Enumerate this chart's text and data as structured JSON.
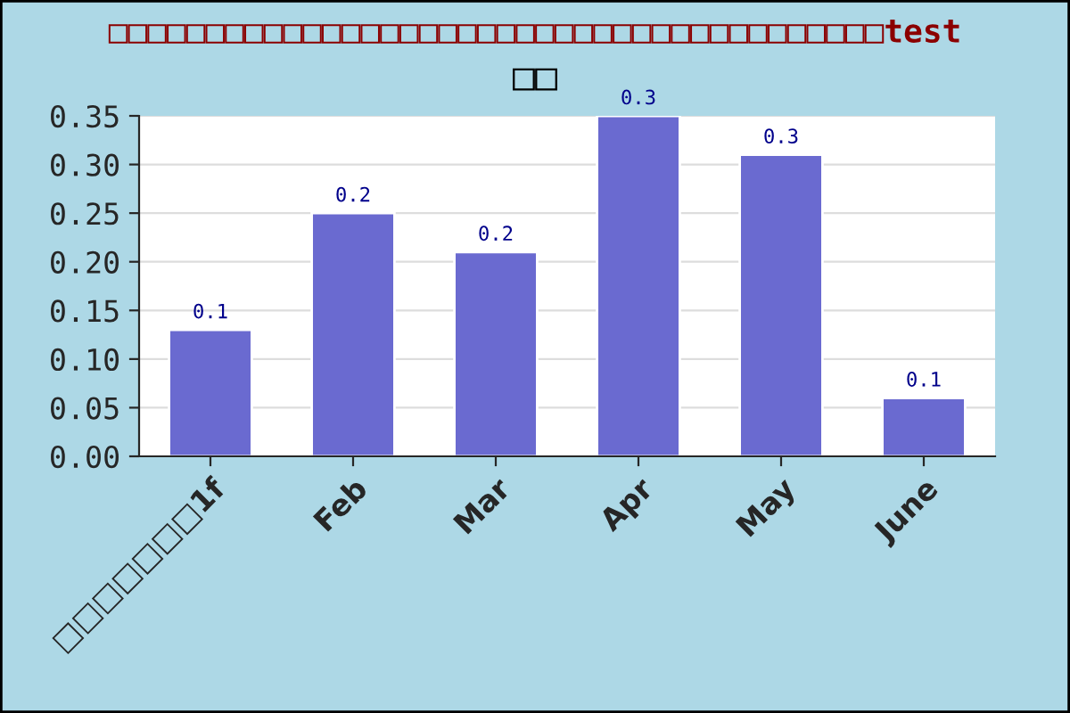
{
  "chart_data": {
    "type": "bar",
    "title": "□□□□□□□□□□□□□□□□□□□□□□□□□□□□□□□□□□□□□□□□test",
    "subtitle": "□□",
    "categories": [
      "□□□□□□□1f",
      "Feb",
      "Mar",
      "Apr",
      "May",
      "June"
    ],
    "values": [
      0.13,
      0.25,
      0.21,
      0.35,
      0.31,
      0.06
    ],
    "value_labels": [
      "0.1",
      "0.2",
      "0.2",
      "0.3",
      "0.3",
      "0.1"
    ],
    "color": "#6a6ad0",
    "ylim": [
      0,
      0.35
    ],
    "yticks": [
      {
        "value": 0,
        "label": "0.00"
      },
      {
        "value": 0.05,
        "label": "0.05"
      },
      {
        "value": 0.1,
        "label": "0.10"
      },
      {
        "value": 0.15,
        "label": "0.15"
      },
      {
        "value": 0.2,
        "label": "0.20"
      },
      {
        "value": 0.25,
        "label": "0.25"
      },
      {
        "value": 0.3,
        "label": "0.30"
      },
      {
        "value": 0.35,
        "label": "0.35"
      }
    ],
    "grid": "y"
  }
}
